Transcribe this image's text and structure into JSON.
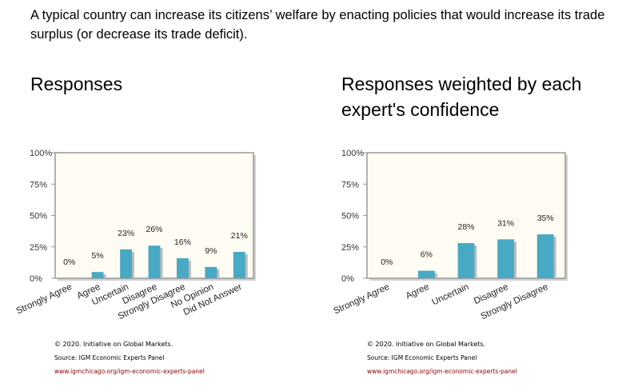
{
  "question": "A typical country can increase its citizens’ welfare by enacting policies that would increase its trade surplus (or decrease its trade deficit).",
  "colors": {
    "bar": "#48a9c5",
    "plot_bg": "#fffcf3",
    "frame": "#999999"
  },
  "chart_data": [
    {
      "type": "bar",
      "title": "Responses",
      "categories": [
        "Strongly Agree",
        "Agree",
        "Uncertain",
        "Disagree",
        "Strongly Disagree",
        "No Opinion",
        "Did Not Answer"
      ],
      "values": [
        0,
        5,
        23,
        26,
        16,
        9,
        21
      ],
      "data_labels": [
        "0%",
        "5%",
        "23%",
        "26%",
        "16%",
        "9%",
        "21%"
      ],
      "yticks": [
        "0%",
        "25%",
        "50%",
        "75%",
        "100%"
      ],
      "ylim": [
        0,
        100
      ],
      "xlabel": "",
      "ylabel": "",
      "grid": false,
      "footer": {
        "copyright": "© 2020. Initiative on Global Markets.",
        "source": "Source: IGM Economic Experts Panel",
        "link": "www.igmchicago.org/igm-economic-experts-panel"
      }
    },
    {
      "type": "bar",
      "title": "Responses weighted by each expert's confidence",
      "categories": [
        "Strongly Agree",
        "Agree",
        "Uncertain",
        "Disagree",
        "Strongly Disagree"
      ],
      "values": [
        0,
        6,
        28,
        31,
        35
      ],
      "data_labels": [
        "0%",
        "6%",
        "28%",
        "31%",
        "35%"
      ],
      "yticks": [
        "0%",
        "25%",
        "50%",
        "75%",
        "100%"
      ],
      "ylim": [
        0,
        100
      ],
      "xlabel": "",
      "ylabel": "",
      "grid": false,
      "footer": {
        "copyright": "© 2020. Initiative on Global Markets.",
        "source": "Source: IGM Economic Experts Panel",
        "link": "www.igmchicago.org/igm-economic-experts-panel"
      }
    }
  ]
}
